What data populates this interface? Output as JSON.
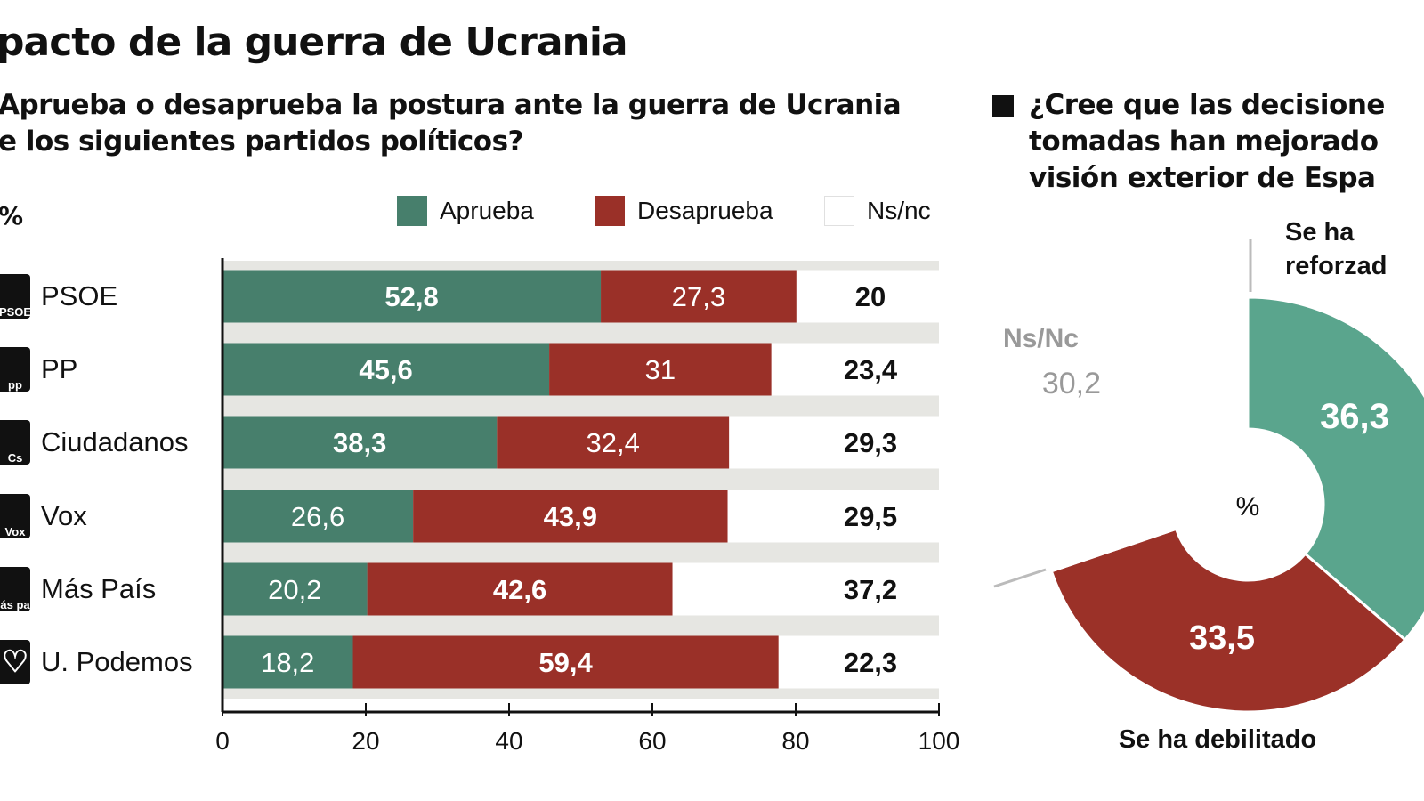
{
  "title": "pacto de la guerra de Ucrania",
  "left_question": [
    "Aprueba o desaprueba la postura ante la guerra de Ucrania",
    "e los siguientes partidos políticos?"
  ],
  "right_question": [
    "¿Cree que las decisione",
    "tomadas han mejorado",
    "visión exterior de Espa"
  ],
  "colors": {
    "aprueba": "#477f6c",
    "desaprueba": "#9a3028",
    "nsnc": "#ffffff",
    "band": "#e6e6e2",
    "pie_green": "#5aa58d",
    "pie_red": "#9b3128",
    "pie_label_gray": "#999999"
  },
  "chart_data": [
    {
      "type": "bar",
      "stacked": true,
      "orientation": "horizontal",
      "unit_label": "%",
      "categories": [
        "PSOE",
        "PP",
        "Ciudadanos",
        "Vox",
        "Más País",
        "U. Podemos"
      ],
      "category_logos": [
        "PSOE",
        "pp",
        "Cs",
        "Vox",
        "Más país",
        "heart"
      ],
      "series": [
        {
          "name": "Aprueba",
          "values": [
            52.8,
            45.6,
            38.3,
            26.6,
            20.2,
            18.2
          ],
          "labels": [
            "52,8",
            "45,6",
            "38,3",
            "26,6",
            "20,2",
            "18,2"
          ]
        },
        {
          "name": "Desaprueba",
          "values": [
            27.3,
            31,
            32.4,
            43.9,
            42.6,
            59.4
          ],
          "labels": [
            "27,3",
            "31",
            "32,4",
            "43,9",
            "42,6",
            "59,4"
          ]
        },
        {
          "name": "Ns/nc",
          "values": [
            20,
            23.4,
            29.3,
            29.5,
            37.2,
            22.3
          ],
          "labels": [
            "20",
            "23,4",
            "29,3",
            "29,5",
            "37,2",
            "22,3"
          ]
        }
      ],
      "xlim": [
        0,
        100
      ],
      "xticks": [
        "0",
        "20",
        "40",
        "60",
        "80",
        "100"
      ],
      "legend": "top"
    },
    {
      "type": "pie",
      "donut": true,
      "center_label": "%",
      "slices": [
        {
          "name": "Se ha reforzado",
          "name_lines": [
            "Se ha",
            "reforzad"
          ],
          "value": 36.3,
          "label": "36,3"
        },
        {
          "name": "Se ha debilitado",
          "name_lines": [
            "Se ha debilitado"
          ],
          "value": 33.5,
          "label": "33,5"
        },
        {
          "name": "Ns/Nc",
          "name_lines": [
            "Ns/Nc"
          ],
          "value": 30.2,
          "label": "30,2"
        }
      ]
    }
  ]
}
